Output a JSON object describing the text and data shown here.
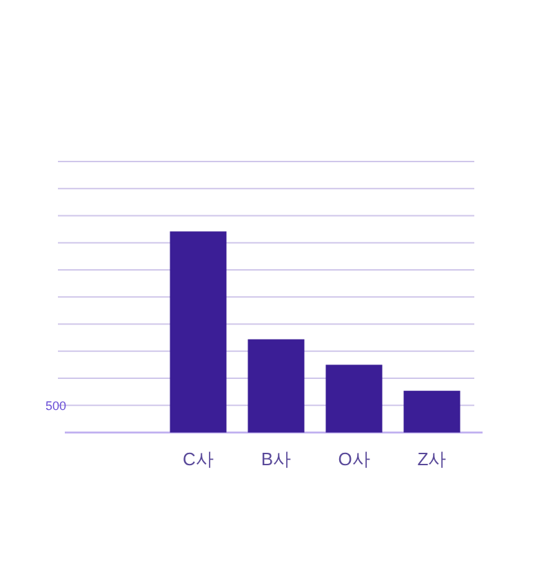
{
  "chart_data": {
    "type": "bar",
    "categories": [
      null,
      "C사",
      "B사",
      "O사",
      "Z사"
    ],
    "values": [
      null,
      3710,
      1720,
      1250,
      770
    ],
    "color": "#3b1e96",
    "ylim": [
      0,
      5000
    ],
    "yticks": [
      {
        "value": 500,
        "label": "500"
      },
      {
        "value": 1000,
        "label": null
      },
      {
        "value": 1500,
        "label": null
      },
      {
        "value": 2000,
        "label": null
      },
      {
        "value": 2500,
        "label": null
      },
      {
        "value": 3000,
        "label": null
      },
      {
        "value": 3500,
        "label": null
      },
      {
        "value": 4000,
        "label": null
      },
      {
        "value": 4500,
        "label": null
      },
      {
        "value": 5000,
        "label": null
      }
    ],
    "grid": "y"
  }
}
